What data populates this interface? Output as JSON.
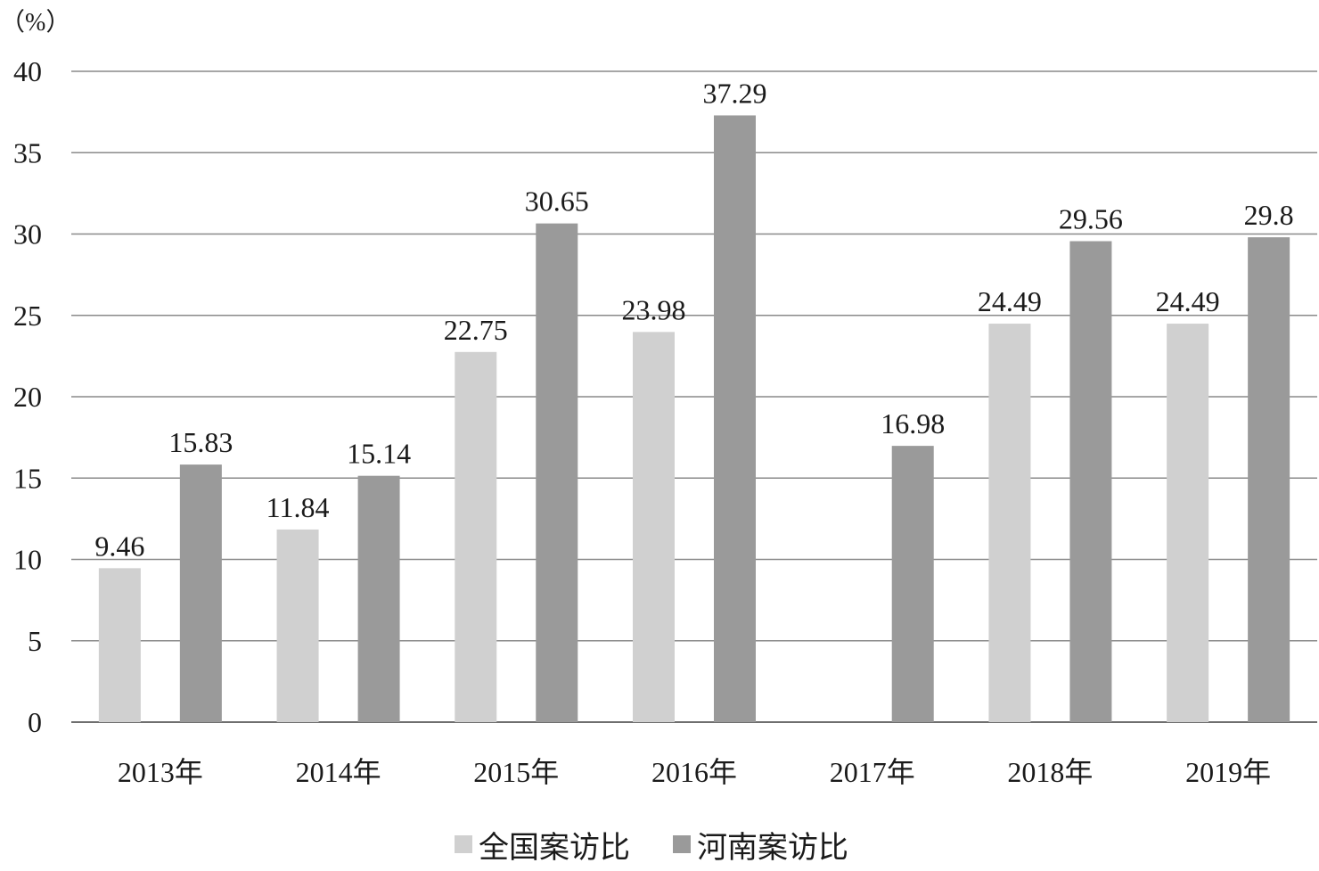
{
  "chart_data": {
    "type": "bar",
    "unit_label": "（%）",
    "categories": [
      "2013年",
      "2014年",
      "2015年",
      "2016年",
      "2017年",
      "2018年",
      "2019年"
    ],
    "series": [
      {
        "name": "全国案访比",
        "color": "#d0d0d0",
        "values": [
          9.46,
          11.84,
          22.75,
          23.98,
          null,
          24.49,
          24.49
        ]
      },
      {
        "name": "河南案访比",
        "color": "#9a9a9a",
        "values": [
          15.83,
          15.14,
          30.65,
          37.29,
          16.98,
          29.56,
          29.8
        ]
      }
    ],
    "ylim": [
      0,
      40
    ],
    "yticks": [
      0,
      5,
      10,
      15,
      20,
      25,
      30,
      35,
      40
    ],
    "grid": true,
    "legend_position": "bottom-center",
    "title": "",
    "xlabel": "",
    "ylabel": ""
  }
}
